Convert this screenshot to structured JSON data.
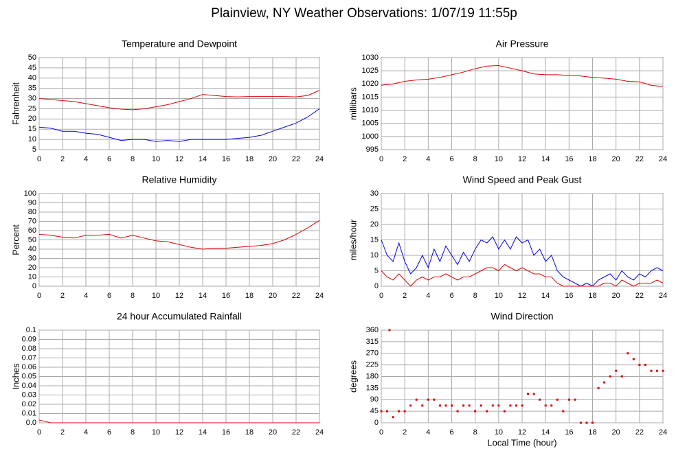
{
  "title": "Plainview, NY Weather Observations: 1/07/19 11:55p",
  "chart_data": [
    {
      "type": "line",
      "title": "Temperature and Dewpoint",
      "ylabel": "Fahrenheit",
      "x": [
        0,
        1,
        2,
        3,
        4,
        5,
        6,
        7,
        8,
        9,
        10,
        11,
        12,
        13,
        14,
        15,
        16,
        17,
        18,
        19,
        20,
        21,
        22,
        23,
        24
      ],
      "series": [
        {
          "color": "#e00000",
          "values": [
            30,
            29.5,
            29,
            28.5,
            27.5,
            26.5,
            25.5,
            24.8,
            24.5,
            25,
            26,
            27,
            28.5,
            30,
            32,
            31.5,
            31,
            30.8,
            31,
            31,
            31,
            31,
            30.8,
            31.5,
            34
          ]
        },
        {
          "color": "#0000e0",
          "values": [
            16,
            15.5,
            14,
            14,
            13,
            12.5,
            11,
            9.5,
            10,
            10,
            9,
            9.5,
            9,
            10,
            10,
            10,
            10,
            10.5,
            11,
            12,
            14,
            16,
            18,
            21,
            25
          ]
        }
      ],
      "xlim": [
        0,
        24
      ],
      "xticks": [
        0,
        2,
        4,
        6,
        8,
        10,
        12,
        14,
        16,
        18,
        20,
        22,
        24
      ],
      "ylim": [
        5,
        50
      ],
      "yticks": [
        5,
        10,
        15,
        20,
        25,
        30,
        35,
        40,
        45,
        50
      ],
      "grid": true
    },
    {
      "type": "line",
      "title": "Air Pressure",
      "ylabel": "millibars",
      "x": [
        0,
        1,
        2,
        3,
        4,
        5,
        6,
        7,
        8,
        9,
        10,
        11,
        12,
        13,
        14,
        15,
        16,
        17,
        18,
        19,
        20,
        21,
        22,
        23,
        24
      ],
      "series": [
        {
          "color": "#e00000",
          "values": [
            1019.5,
            1020,
            1021,
            1021.5,
            1021.8,
            1022.5,
            1023.5,
            1024.5,
            1025.8,
            1026.8,
            1027,
            1026,
            1025,
            1023.8,
            1023.5,
            1023.5,
            1023.2,
            1023,
            1022.5,
            1022.2,
            1021.8,
            1021,
            1020.8,
            1019.5,
            1019
          ]
        }
      ],
      "xlim": [
        0,
        24
      ],
      "xticks": [
        0,
        2,
        4,
        6,
        8,
        10,
        12,
        14,
        16,
        18,
        20,
        22,
        24
      ],
      "ylim": [
        995,
        1030
      ],
      "yticks": [
        995,
        1000,
        1005,
        1010,
        1015,
        1020,
        1025,
        1030
      ],
      "grid": true
    },
    {
      "type": "line",
      "title": "Relative Humidity",
      "ylabel": "Percent",
      "x": [
        0,
        1,
        2,
        3,
        4,
        5,
        6,
        7,
        8,
        9,
        10,
        11,
        12,
        13,
        14,
        15,
        16,
        17,
        18,
        19,
        20,
        21,
        22,
        23,
        24
      ],
      "series": [
        {
          "color": "#e00000",
          "values": [
            56,
            55,
            53,
            52,
            55,
            55,
            56,
            52,
            55,
            52,
            49,
            48,
            45,
            42,
            40,
            41,
            41,
            42,
            43,
            44,
            46,
            50,
            56,
            63,
            71
          ]
        }
      ],
      "xlim": [
        0,
        24
      ],
      "xticks": [
        0,
        2,
        4,
        6,
        8,
        10,
        12,
        14,
        16,
        18,
        20,
        22,
        24
      ],
      "ylim": [
        0,
        100
      ],
      "yticks": [
        0,
        10,
        20,
        30,
        40,
        50,
        60,
        70,
        80,
        90,
        100
      ],
      "grid": true
    },
    {
      "type": "line",
      "title": "Wind Speed and Peak Gust",
      "ylabel": "miles/hour",
      "x": [
        0,
        0.5,
        1,
        1.5,
        2,
        2.5,
        3,
        3.5,
        4,
        4.5,
        5,
        5.5,
        6,
        6.5,
        7,
        7.5,
        8,
        8.5,
        9,
        9.5,
        10,
        10.5,
        11,
        11.5,
        12,
        12.5,
        13,
        13.5,
        14,
        14.5,
        15,
        15.5,
        16,
        16.5,
        17,
        17.5,
        18,
        18.5,
        19,
        19.5,
        20,
        20.5,
        21,
        21.5,
        22,
        22.5,
        23,
        23.5,
        24
      ],
      "series": [
        {
          "color": "#0000e0",
          "values": [
            15,
            10,
            8,
            14,
            8,
            4,
            6,
            10,
            6,
            12,
            8,
            13,
            10,
            7,
            11,
            8,
            12,
            15,
            14,
            16,
            12,
            15,
            12,
            16,
            14,
            15,
            10,
            12,
            8,
            10,
            5,
            3,
            2,
            1,
            0,
            1,
            0,
            2,
            3,
            4,
            2,
            5,
            3,
            2,
            4,
            3,
            5,
            6,
            5
          ]
        },
        {
          "color": "#e00000",
          "values": [
            5,
            3,
            2,
            4,
            2,
            0,
            2,
            3,
            2,
            3,
            3,
            4,
            3,
            2,
            3,
            3,
            4,
            5,
            6,
            6,
            5,
            7,
            6,
            5,
            6,
            5,
            4,
            4,
            3,
            3,
            1,
            0,
            0,
            0,
            0,
            0,
            0,
            0,
            1,
            1,
            0,
            2,
            1,
            0,
            1,
            1,
            1,
            2,
            1
          ]
        }
      ],
      "xlim": [
        0,
        24
      ],
      "xticks": [
        0,
        2,
        4,
        6,
        8,
        10,
        12,
        14,
        16,
        18,
        20,
        22,
        24
      ],
      "ylim": [
        0,
        30
      ],
      "yticks": [
        0,
        5,
        10,
        15,
        20,
        25,
        30
      ],
      "grid": true
    },
    {
      "type": "line",
      "title": "24 hour Accumulated Rainfall",
      "ylabel": "Inches",
      "x": [
        0,
        1,
        2,
        3,
        4,
        5,
        6,
        7,
        8,
        9,
        10,
        11,
        12,
        13,
        14,
        15,
        16,
        17,
        18,
        19,
        20,
        21,
        22,
        23,
        24
      ],
      "series": [
        {
          "color": "#e00000",
          "values": [
            0.003,
            0,
            0,
            0,
            0,
            0,
            0,
            0,
            0,
            0,
            0,
            0,
            0,
            0,
            0,
            0,
            0,
            0,
            0,
            0,
            0,
            0,
            0,
            0,
            0
          ]
        }
      ],
      "xlim": [
        0,
        24
      ],
      "xticks": [
        0,
        2,
        4,
        6,
        8,
        10,
        12,
        14,
        16,
        18,
        20,
        22,
        24
      ],
      "ylim": [
        0,
        0.1
      ],
      "yticks": [
        {
          "value": 0,
          "label": "0.0"
        },
        0.01,
        0.02,
        0.03,
        0.04,
        0.05,
        0.06,
        0.07,
        0.08,
        0.09,
        0.1
      ],
      "grid": true
    },
    {
      "type": "scatter",
      "title": "Wind Direction",
      "ylabel": "degrees",
      "xlabel": "Local Time (hour)",
      "x": [
        0,
        0.5,
        0.7,
        1,
        1.5,
        2,
        2.5,
        3,
        3.5,
        4,
        4.5,
        5,
        5.5,
        6,
        6.5,
        7,
        7.5,
        8,
        8.5,
        9,
        9.5,
        10,
        10.5,
        11,
        11.5,
        12,
        12.5,
        13,
        13.5,
        14,
        14.5,
        15,
        15.5,
        16,
        16.5,
        17,
        17.5,
        18,
        18.5,
        19,
        19.5,
        20,
        20.5,
        21,
        21.5,
        22,
        22.5,
        23,
        23.5,
        24
      ],
      "series": [
        {
          "color": "#e00000",
          "values": [
            45,
            45,
            360,
            22,
            45,
            45,
            67,
            90,
            67,
            90,
            90,
            67,
            67,
            67,
            45,
            67,
            67,
            45,
            67,
            45,
            67,
            67,
            45,
            67,
            67,
            67,
            112,
            112,
            90,
            67,
            67,
            90,
            45,
            90,
            90,
            0,
            0,
            0,
            135,
            157,
            180,
            202,
            180,
            270,
            247,
            225,
            225,
            202,
            202,
            202
          ]
        }
      ],
      "xlim": [
        0,
        24
      ],
      "xticks": [
        0,
        2,
        4,
        6,
        8,
        10,
        12,
        14,
        16,
        18,
        20,
        22,
        24
      ],
      "ylim": [
        0,
        360
      ],
      "yticks": [
        0,
        45,
        90,
        135,
        180,
        225,
        270,
        315,
        360
      ],
      "grid": true
    }
  ]
}
